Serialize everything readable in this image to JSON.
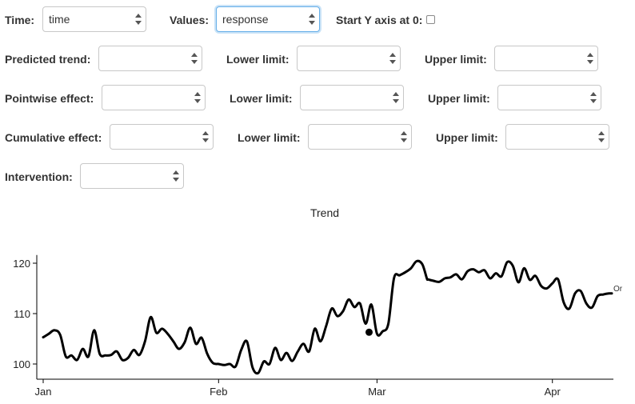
{
  "controls": {
    "time_label": "Time:",
    "time_value": "time",
    "values_label": "Values:",
    "values_value": "response",
    "start_y_label": "Start Y axis at 0:",
    "predicted_trend_label": "Predicted trend:",
    "pointwise_effect_label": "Pointwise effect:",
    "cumulative_effect_label": "Cumulative effect:",
    "lower_limit_label": "Lower limit:",
    "upper_limit_label": "Upper limit:",
    "intervention_label": "Intervention:"
  },
  "chart_data": {
    "type": "line",
    "title": "Trend",
    "x_tick_labels": [
      "Jan",
      "Feb",
      "Mar",
      "Apr"
    ],
    "x_tick_days": [
      0,
      31,
      59,
      90
    ],
    "y_ticks": [
      100,
      110,
      120
    ],
    "ylim": [
      98,
      121
    ],
    "legend_text": "Or",
    "line_color": "#000000",
    "marker": {
      "day": 57.6,
      "value": 106.3
    },
    "series": [
      {
        "x": [
          0,
          1,
          2,
          3,
          4,
          5,
          6,
          7,
          8,
          9,
          10,
          11,
          12,
          13,
          14,
          15,
          16,
          17,
          18,
          19,
          20,
          21,
          22,
          23,
          24,
          25,
          26,
          27,
          28,
          29,
          30,
          31,
          32,
          33,
          34,
          35,
          36,
          37,
          38,
          39,
          40,
          41,
          42,
          43,
          44,
          45,
          46,
          47,
          48,
          49,
          50,
          51,
          52,
          53,
          54,
          55,
          56,
          57,
          58,
          59,
          60,
          61,
          62,
          63,
          64,
          65,
          66,
          67,
          67.8,
          68,
          69,
          70,
          71,
          72,
          73,
          74,
          75,
          76,
          77,
          78,
          79,
          80,
          81,
          82,
          83,
          84,
          85,
          86,
          87,
          88,
          89,
          90,
          91,
          92,
          93,
          94,
          95,
          96,
          97,
          98,
          99,
          100,
          100.5
        ],
        "values": [
          105.3,
          106.0,
          106.7,
          105.8,
          101.5,
          101.7,
          100.8,
          103.0,
          101.5,
          106.7,
          102.0,
          101.7,
          101.8,
          102.5,
          100.8,
          101.2,
          102.8,
          101.8,
          104.5,
          109.3,
          106.2,
          107.0,
          106.0,
          104.5,
          103.0,
          104.3,
          107.2,
          104.0,
          105.2,
          102.0,
          100.2,
          100.0,
          99.8,
          100.0,
          99.5,
          102.8,
          104.5,
          99.3,
          98.2,
          100.5,
          100.0,
          103.2,
          100.8,
          102.2,
          100.6,
          102.5,
          104.0,
          102.5,
          107.0,
          104.5,
          107.5,
          111.0,
          109.5,
          110.5,
          112.8,
          111.3,
          112.0,
          108.0,
          111.8,
          106.0,
          106.5,
          108.0,
          117.0,
          117.6,
          118.2,
          119.0,
          120.4,
          119.8,
          117.0,
          116.8,
          116.5,
          116.3,
          117.0,
          117.2,
          117.8,
          116.8,
          118.4,
          118.8,
          118.2,
          118.6,
          117.0,
          118.0,
          117.4,
          120.2,
          119.5,
          116.2,
          119.0,
          116.7,
          117.5,
          115.5,
          115.0,
          116.0,
          116.8,
          112.2,
          111.0,
          114.0,
          114.5,
          112.0,
          111.2,
          113.5,
          113.8,
          114.0,
          114.0
        ]
      }
    ]
  }
}
